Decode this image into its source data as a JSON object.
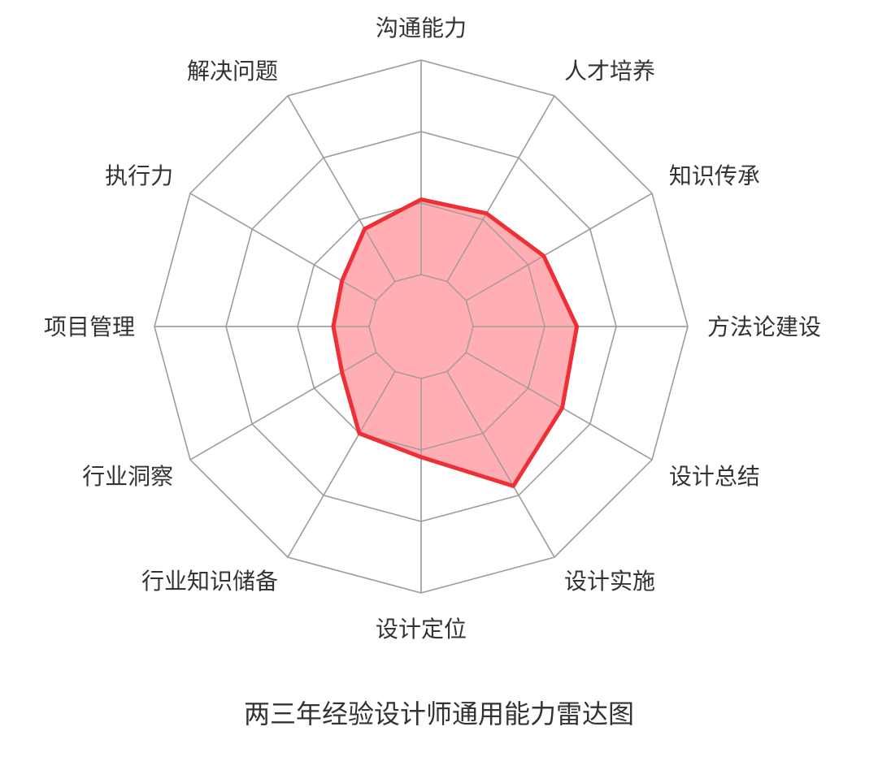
{
  "chart_data": {
    "type": "radar",
    "title": "两三年经验设计师通用能力雷达图",
    "axes": [
      "沟通能力",
      "人才培养",
      "知识传承",
      "方法论建设",
      "设计总结",
      "设计实施",
      "设计定位",
      "行业知识储备",
      "行业洞察",
      "项目管理",
      "执行力",
      "解决问题"
    ],
    "levels": 4,
    "range": [
      0,
      4
    ],
    "series": [
      {
        "values": [
          2.05,
          2.1,
          2.25,
          2.45,
          2.55,
          2.85,
          2.1,
          2.0,
          1.55,
          1.5,
          1.55,
          1.85
        ]
      }
    ],
    "colors": {
      "fill": "#ff9aa0",
      "fill_opacity": 0.8,
      "stroke": "#ee2f36",
      "grid": "#aaaaaa",
      "label": "#333333"
    },
    "grid": true,
    "legend": "none"
  }
}
